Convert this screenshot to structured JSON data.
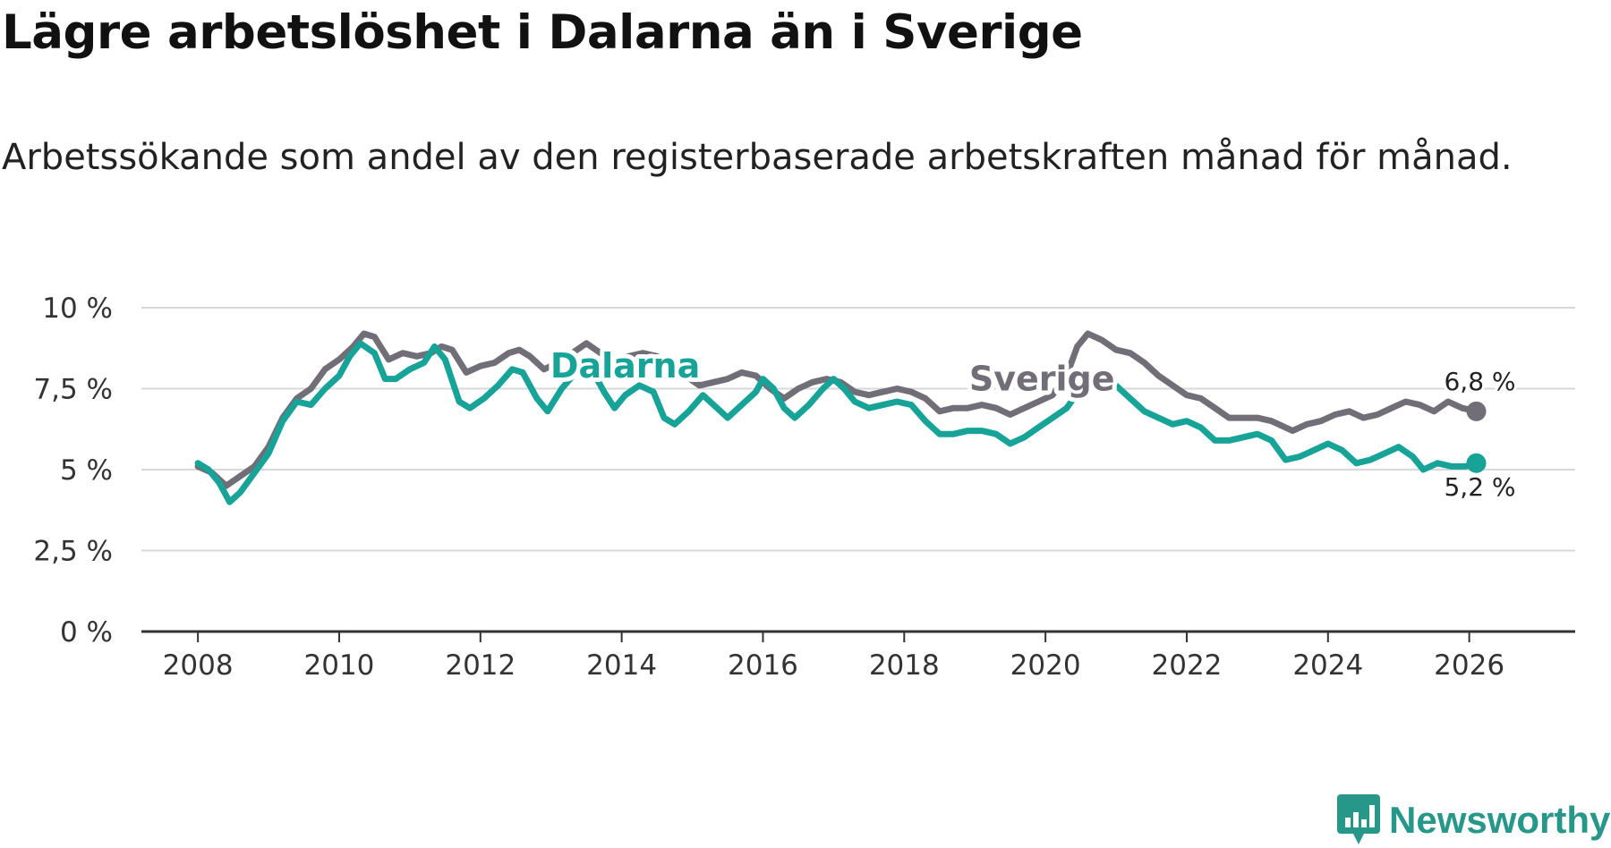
{
  "header": {
    "title": "Lägre arbetslöshet i Dalarna än i Sverige",
    "subtitle": "Arbetssökande som andel av den registerbaserade arbetskraften månad för månad."
  },
  "brand": {
    "name": "Newsworthy",
    "icon": "newsworthy-logo-icon",
    "color": "#27978a"
  },
  "colors": {
    "dalarna": "#17a398",
    "sverige": "#716e78",
    "grid": "#d8d8d8",
    "axis": "#333333"
  },
  "chart_data": {
    "type": "line",
    "title": "Lägre arbetslöshet i Dalarna än i Sverige",
    "xlabel": "",
    "ylabel": "",
    "xlim": [
      2007.2,
      2027.5
    ],
    "ylim": [
      0,
      10
    ],
    "y_ticks": [
      0,
      2.5,
      5,
      7.5,
      10
    ],
    "y_tick_labels": [
      "0 %",
      "2,5 %",
      "5 %",
      "7,5 %",
      "10 %"
    ],
    "x_ticks": [
      2008,
      2010,
      2012,
      2014,
      2016,
      2018,
      2020,
      2022,
      2024,
      2026
    ],
    "x_tick_labels": [
      "2008",
      "2010",
      "2012",
      "2014",
      "2016",
      "2018",
      "2020",
      "2022",
      "2024",
      "2026"
    ],
    "grid": true,
    "series": [
      {
        "name": "Sverige",
        "color": "#716e78",
        "label_at": [
          2019.95,
          7.45
        ],
        "end_label": "6,8 %",
        "points": [
          [
            2008.0,
            5.1
          ],
          [
            2008.2,
            4.9
          ],
          [
            2008.4,
            4.5
          ],
          [
            2008.6,
            4.8
          ],
          [
            2008.8,
            5.1
          ],
          [
            2009.0,
            5.7
          ],
          [
            2009.2,
            6.6
          ],
          [
            2009.4,
            7.2
          ],
          [
            2009.6,
            7.5
          ],
          [
            2009.8,
            8.1
          ],
          [
            2010.0,
            8.4
          ],
          [
            2010.2,
            8.8
          ],
          [
            2010.35,
            9.2
          ],
          [
            2010.5,
            9.1
          ],
          [
            2010.7,
            8.4
          ],
          [
            2010.9,
            8.6
          ],
          [
            2011.1,
            8.5
          ],
          [
            2011.3,
            8.6
          ],
          [
            2011.45,
            8.8
          ],
          [
            2011.6,
            8.7
          ],
          [
            2011.8,
            8.0
          ],
          [
            2012.0,
            8.2
          ],
          [
            2012.2,
            8.3
          ],
          [
            2012.4,
            8.6
          ],
          [
            2012.55,
            8.7
          ],
          [
            2012.7,
            8.5
          ],
          [
            2012.9,
            8.1
          ],
          [
            2013.1,
            8.3
          ],
          [
            2013.3,
            8.6
          ],
          [
            2013.5,
            8.9
          ],
          [
            2013.7,
            8.6
          ],
          [
            2013.9,
            8.4
          ],
          [
            2014.1,
            8.5
          ],
          [
            2014.3,
            8.6
          ],
          [
            2014.5,
            8.5
          ],
          [
            2014.7,
            8.3
          ],
          [
            2014.9,
            7.9
          ],
          [
            2015.1,
            7.6
          ],
          [
            2015.3,
            7.7
          ],
          [
            2015.5,
            7.8
          ],
          [
            2015.7,
            8.0
          ],
          [
            2015.9,
            7.9
          ],
          [
            2016.1,
            7.5
          ],
          [
            2016.3,
            7.2
          ],
          [
            2016.5,
            7.5
          ],
          [
            2016.7,
            7.7
          ],
          [
            2016.9,
            7.8
          ],
          [
            2017.1,
            7.7
          ],
          [
            2017.3,
            7.4
          ],
          [
            2017.5,
            7.3
          ],
          [
            2017.7,
            7.4
          ],
          [
            2017.9,
            7.5
          ],
          [
            2018.1,
            7.4
          ],
          [
            2018.3,
            7.2
          ],
          [
            2018.5,
            6.8
          ],
          [
            2018.7,
            6.9
          ],
          [
            2018.9,
            6.9
          ],
          [
            2019.1,
            7.0
          ],
          [
            2019.3,
            6.9
          ],
          [
            2019.5,
            6.7
          ],
          [
            2019.7,
            6.9
          ],
          [
            2019.9,
            7.1
          ],
          [
            2020.1,
            7.3
          ],
          [
            2020.3,
            7.9
          ],
          [
            2020.45,
            8.8
          ],
          [
            2020.6,
            9.2
          ],
          [
            2020.8,
            9.0
          ],
          [
            2021.0,
            8.7
          ],
          [
            2021.2,
            8.6
          ],
          [
            2021.4,
            8.3
          ],
          [
            2021.6,
            7.9
          ],
          [
            2021.8,
            7.6
          ],
          [
            2022.0,
            7.3
          ],
          [
            2022.2,
            7.2
          ],
          [
            2022.4,
            6.9
          ],
          [
            2022.6,
            6.6
          ],
          [
            2022.8,
            6.6
          ],
          [
            2023.0,
            6.6
          ],
          [
            2023.2,
            6.5
          ],
          [
            2023.4,
            6.3
          ],
          [
            2023.5,
            6.2
          ],
          [
            2023.7,
            6.4
          ],
          [
            2023.9,
            6.5
          ],
          [
            2024.1,
            6.7
          ],
          [
            2024.3,
            6.8
          ],
          [
            2024.5,
            6.6
          ],
          [
            2024.7,
            6.7
          ],
          [
            2024.9,
            6.9
          ],
          [
            2025.1,
            7.1
          ],
          [
            2025.3,
            7.0
          ],
          [
            2025.5,
            6.8
          ],
          [
            2025.7,
            7.1
          ],
          [
            2025.9,
            6.9
          ],
          [
            2026.1,
            6.8
          ]
        ]
      },
      {
        "name": "Dalarna",
        "color": "#17a398",
        "label_at": [
          2014.05,
          7.85
        ],
        "end_label": "5,2 %",
        "points": [
          [
            2008.0,
            5.2
          ],
          [
            2008.15,
            5.0
          ],
          [
            2008.3,
            4.6
          ],
          [
            2008.45,
            4.0
          ],
          [
            2008.6,
            4.3
          ],
          [
            2008.8,
            4.9
          ],
          [
            2009.0,
            5.5
          ],
          [
            2009.2,
            6.5
          ],
          [
            2009.4,
            7.1
          ],
          [
            2009.6,
            7.0
          ],
          [
            2009.8,
            7.5
          ],
          [
            2010.0,
            7.9
          ],
          [
            2010.15,
            8.5
          ],
          [
            2010.3,
            8.9
          ],
          [
            2010.5,
            8.6
          ],
          [
            2010.65,
            7.8
          ],
          [
            2010.8,
            7.8
          ],
          [
            2011.0,
            8.1
          ],
          [
            2011.2,
            8.3
          ],
          [
            2011.35,
            8.8
          ],
          [
            2011.5,
            8.4
          ],
          [
            2011.7,
            7.1
          ],
          [
            2011.85,
            6.9
          ],
          [
            2012.05,
            7.2
          ],
          [
            2012.25,
            7.6
          ],
          [
            2012.45,
            8.1
          ],
          [
            2012.6,
            8.0
          ],
          [
            2012.8,
            7.2
          ],
          [
            2012.95,
            6.8
          ],
          [
            2013.15,
            7.5
          ],
          [
            2013.35,
            8.0
          ],
          [
            2013.55,
            8.2
          ],
          [
            2013.75,
            7.4
          ],
          [
            2013.9,
            6.9
          ],
          [
            2014.05,
            7.3
          ],
          [
            2014.25,
            7.6
          ],
          [
            2014.45,
            7.4
          ],
          [
            2014.6,
            6.6
          ],
          [
            2014.75,
            6.4
          ],
          [
            2014.95,
            6.8
          ],
          [
            2015.15,
            7.3
          ],
          [
            2015.35,
            6.9
          ],
          [
            2015.5,
            6.6
          ],
          [
            2015.7,
            7.0
          ],
          [
            2015.9,
            7.4
          ],
          [
            2016.0,
            7.8
          ],
          [
            2016.15,
            7.5
          ],
          [
            2016.3,
            6.9
          ],
          [
            2016.45,
            6.6
          ],
          [
            2016.65,
            7.0
          ],
          [
            2016.85,
            7.5
          ],
          [
            2017.0,
            7.8
          ],
          [
            2017.15,
            7.5
          ],
          [
            2017.3,
            7.1
          ],
          [
            2017.5,
            6.9
          ],
          [
            2017.7,
            7.0
          ],
          [
            2017.9,
            7.1
          ],
          [
            2018.1,
            7.0
          ],
          [
            2018.3,
            6.5
          ],
          [
            2018.5,
            6.1
          ],
          [
            2018.7,
            6.1
          ],
          [
            2018.9,
            6.2
          ],
          [
            2019.1,
            6.2
          ],
          [
            2019.3,
            6.1
          ],
          [
            2019.5,
            5.8
          ],
          [
            2019.7,
            6.0
          ],
          [
            2019.9,
            6.3
          ],
          [
            2020.1,
            6.6
          ],
          [
            2020.3,
            6.9
          ],
          [
            2020.5,
            7.5
          ],
          [
            2020.75,
            7.8
          ],
          [
            2021.0,
            7.6
          ],
          [
            2021.2,
            7.2
          ],
          [
            2021.4,
            6.8
          ],
          [
            2021.6,
            6.6
          ],
          [
            2021.8,
            6.4
          ],
          [
            2022.0,
            6.5
          ],
          [
            2022.2,
            6.3
          ],
          [
            2022.4,
            5.9
          ],
          [
            2022.6,
            5.9
          ],
          [
            2022.8,
            6.0
          ],
          [
            2023.0,
            6.1
          ],
          [
            2023.2,
            5.9
          ],
          [
            2023.4,
            5.3
          ],
          [
            2023.6,
            5.4
          ],
          [
            2023.8,
            5.6
          ],
          [
            2024.0,
            5.8
          ],
          [
            2024.2,
            5.6
          ],
          [
            2024.4,
            5.2
          ],
          [
            2024.6,
            5.3
          ],
          [
            2024.8,
            5.5
          ],
          [
            2025.0,
            5.7
          ],
          [
            2025.2,
            5.4
          ],
          [
            2025.35,
            5.0
          ],
          [
            2025.55,
            5.2
          ],
          [
            2025.75,
            5.1
          ],
          [
            2025.95,
            5.1
          ],
          [
            2026.1,
            5.2
          ]
        ]
      }
    ]
  }
}
